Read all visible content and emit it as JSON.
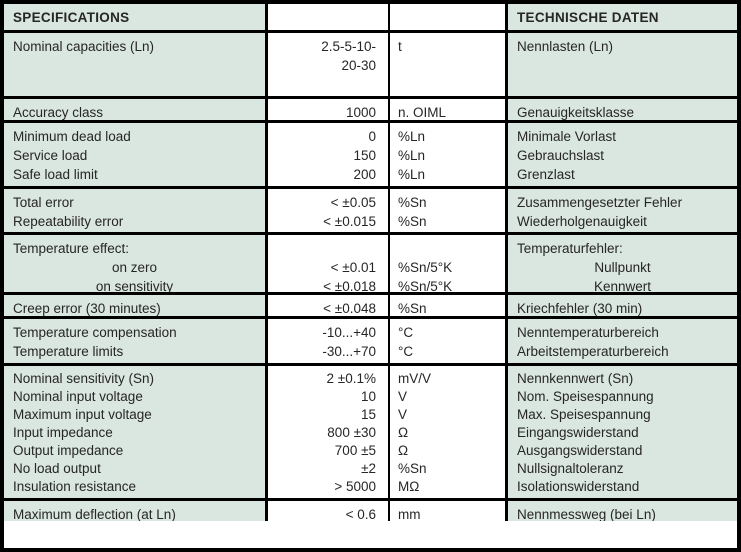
{
  "header": {
    "specifications": "SPECIFICATIONS",
    "technische_daten": "TECHNISCHE DATEN"
  },
  "colors": {
    "cell_background_mint": "#dae6e0",
    "cell_background_white": "#ffffff",
    "border": "#000000",
    "text": "#262626"
  },
  "rows": [
    {
      "lines": [
        {
          "en": "Nominal capacities (Ln)",
          "value": "2.5-5-10-",
          "unit": "t",
          "de": "Nennlasten (Ln)"
        },
        {
          "en": "",
          "value": "20-30",
          "unit": "",
          "de": ""
        }
      ]
    },
    {
      "lines": [
        {
          "en": "Accuracy class",
          "value": "1000",
          "unit": "n. OIML",
          "de": "Genauigkeitsklasse"
        }
      ]
    },
    {
      "lines": [
        {
          "en": "Minimum dead load",
          "value": "0",
          "unit": "%Ln",
          "de": "Minimale Vorlast"
        },
        {
          "en": "Service load",
          "value": "150",
          "unit": "%Ln",
          "de": "Gebrauchslast"
        },
        {
          "en": "Safe load limit",
          "value": "200",
          "unit": "%Ln",
          "de": "Grenzlast"
        }
      ]
    },
    {
      "lines": [
        {
          "en": "Total error",
          "value": "< ±0.05",
          "unit": "%Sn",
          "de": "Zusammengesetzter Fehler"
        },
        {
          "en": "Repeatability error",
          "value": "< ±0.015",
          "unit": "%Sn",
          "de": "Wiederholgenauigkeit"
        }
      ]
    },
    {
      "lines": [
        {
          "en": "Temperature effect:",
          "value": "",
          "unit": "",
          "de": "Temperaturfehler:"
        },
        {
          "en": "on zero",
          "en_center": true,
          "value": "< ±0.01",
          "unit": "%Sn/5°K",
          "de": "Nullpunkt",
          "de_center": true
        },
        {
          "en": "on sensitivity",
          "en_center": true,
          "value": "< ±0.018",
          "unit": "%Sn/5°K",
          "de": "Kennwert",
          "de_center": true
        }
      ]
    },
    {
      "lines": [
        {
          "en": "Creep error (30 minutes)",
          "value": "< ±0.048",
          "unit": "%Sn",
          "de": "Kriechfehler (30 min)"
        }
      ]
    },
    {
      "lines": [
        {
          "en": "Temperature compensation",
          "value": "-10...+40",
          "unit": "°C",
          "de": "Nenntemperaturbereich"
        },
        {
          "en": "Temperature limits",
          "value": "-30...+70",
          "unit": "°C",
          "de": "Arbeitstemperaturbereich"
        }
      ]
    },
    {
      "lines": [
        {
          "en": "Nominal sensitivity (Sn)",
          "value": "2 ±0.1%",
          "unit": "mV/V",
          "de": "Nennkennwert (Sn)"
        },
        {
          "en": "Nominal input voltage",
          "value": "10",
          "unit": "V",
          "de": "Nom. Speisespannung"
        },
        {
          "en": "Maximum input voltage",
          "value": "15",
          "unit": "V",
          "de": "Max. Speisespannung"
        },
        {
          "en": "Input impedance",
          "value": "800 ±30",
          "unit": "Ω",
          "de": "Eingangswiderstand"
        },
        {
          "en": "Output impedance",
          "value": "700 ±5",
          "unit": "Ω",
          "de": "Ausgangswiderstand"
        },
        {
          "en": "No load output",
          "value": "±2",
          "unit": "%Sn",
          "de": "Nullsignaltoleranz"
        },
        {
          "en": "Insulation resistance",
          "value": "> 5000",
          "unit": "MΩ",
          "de": "Isolationswiderstand"
        }
      ]
    },
    {
      "lines": [
        {
          "en": "Maximum deflection (at Ln)",
          "value": "< 0.6",
          "unit": "mm",
          "de": "Nennmessweg (bei Ln)"
        }
      ]
    }
  ]
}
